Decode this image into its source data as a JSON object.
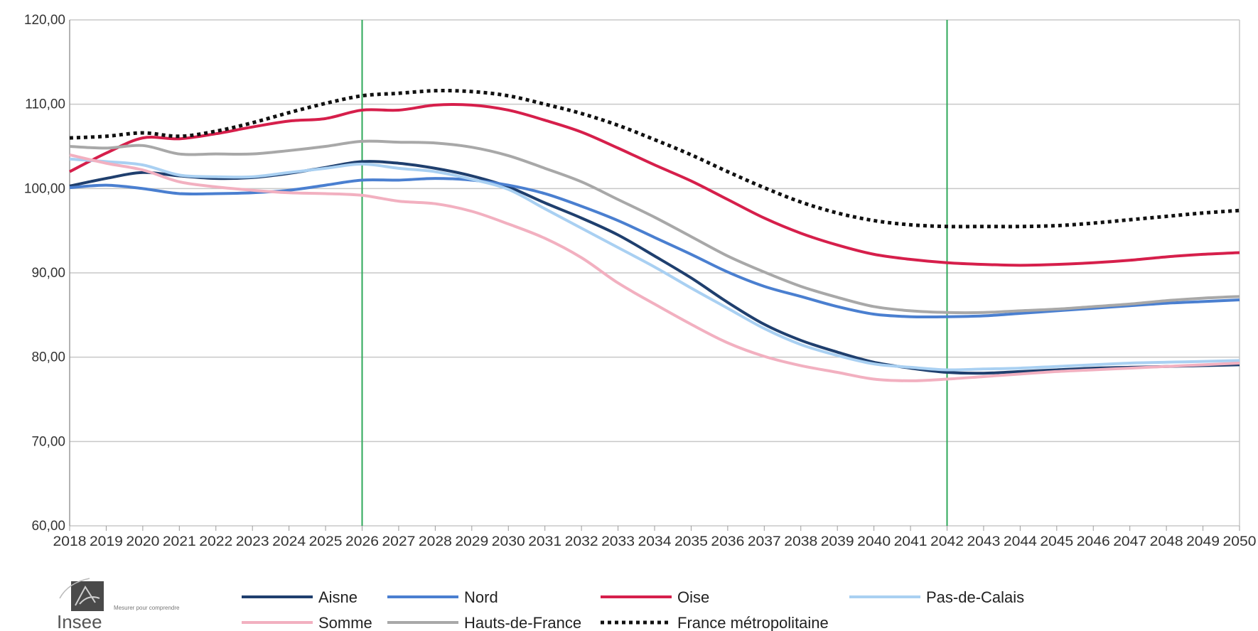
{
  "chart_data": {
    "type": "line",
    "title": "",
    "xlabel": "",
    "ylabel": "",
    "x": [
      2018,
      2019,
      2020,
      2021,
      2022,
      2023,
      2024,
      2025,
      2026,
      2027,
      2028,
      2029,
      2030,
      2031,
      2032,
      2033,
      2034,
      2035,
      2036,
      2037,
      2038,
      2039,
      2040,
      2041,
      2042,
      2043,
      2044,
      2045,
      2046,
      2047,
      2048,
      2049,
      2050
    ],
    "ylim": [
      60,
      120
    ],
    "yticks": [
      60,
      70,
      80,
      90,
      100,
      110,
      120
    ],
    "ytick_labels": [
      "60,00",
      "70,00",
      "80,00",
      "90,00",
      "100,00",
      "110,00",
      "120,00"
    ],
    "grid": true,
    "vertical_markers": [
      2026,
      2042
    ],
    "legend_position": "bottom",
    "series": [
      {
        "name": "Aisne",
        "color": "#1f3f6e",
        "dash": "solid",
        "values": [
          100.3,
          101.2,
          101.9,
          101.5,
          101.2,
          101.3,
          101.8,
          102.5,
          103.2,
          103.0,
          102.4,
          101.5,
          100.2,
          98.3,
          96.5,
          94.5,
          92.0,
          89.4,
          86.5,
          83.9,
          82.0,
          80.6,
          79.4,
          78.7,
          78.2,
          78.1,
          78.3,
          78.5,
          78.7,
          78.8,
          78.9,
          79.0,
          79.1
        ]
      },
      {
        "name": "Nord",
        "color": "#4a7fd0",
        "dash": "solid",
        "values": [
          100.1,
          100.4,
          100.0,
          99.4,
          99.4,
          99.5,
          99.8,
          100.4,
          101.0,
          101.0,
          101.2,
          101.0,
          100.4,
          99.4,
          97.9,
          96.2,
          94.2,
          92.2,
          90.1,
          88.4,
          87.2,
          86.0,
          85.1,
          84.8,
          84.8,
          84.9,
          85.2,
          85.5,
          85.8,
          86.1,
          86.4,
          86.6,
          86.8
        ]
      },
      {
        "name": "Oise",
        "color": "#d61f4b",
        "dash": "solid",
        "values": [
          102.0,
          104.2,
          106.0,
          105.9,
          106.5,
          107.3,
          108.0,
          108.3,
          109.3,
          109.3,
          109.9,
          109.9,
          109.3,
          108.1,
          106.7,
          104.8,
          102.8,
          100.9,
          98.7,
          96.5,
          94.7,
          93.3,
          92.2,
          91.6,
          91.2,
          91.0,
          90.9,
          91.0,
          91.2,
          91.5,
          91.9,
          92.2,
          92.4
        ]
      },
      {
        "name": "Pas-de-Calais",
        "color": "#a9d0f2",
        "dash": "solid",
        "values": [
          103.5,
          103.2,
          102.8,
          101.6,
          101.4,
          101.4,
          101.9,
          102.4,
          102.9,
          102.4,
          102.0,
          101.1,
          99.9,
          97.6,
          95.3,
          93.0,
          90.7,
          88.2,
          85.8,
          83.4,
          81.5,
          80.2,
          79.2,
          78.8,
          78.5,
          78.6,
          78.7,
          78.9,
          79.1,
          79.3,
          79.4,
          79.5,
          79.6
        ]
      },
      {
        "name": "Somme",
        "color": "#f2b0c0",
        "dash": "solid",
        "values": [
          104.0,
          103.0,
          102.2,
          100.8,
          100.2,
          99.8,
          99.5,
          99.4,
          99.2,
          98.5,
          98.2,
          97.3,
          95.8,
          94.1,
          91.8,
          88.8,
          86.3,
          83.9,
          81.7,
          80.1,
          79.0,
          78.2,
          77.4,
          77.2,
          77.4,
          77.7,
          78.0,
          78.3,
          78.5,
          78.7,
          78.9,
          79.1,
          79.3
        ]
      },
      {
        "name": "Hauts-de-France",
        "color": "#a8a8a8",
        "dash": "solid",
        "values": [
          105.0,
          104.8,
          105.1,
          104.1,
          104.1,
          104.1,
          104.5,
          105.0,
          105.6,
          105.5,
          105.4,
          104.9,
          103.9,
          102.4,
          100.8,
          98.7,
          96.6,
          94.3,
          92.0,
          90.1,
          88.4,
          87.1,
          86.0,
          85.5,
          85.3,
          85.3,
          85.5,
          85.7,
          86.0,
          86.3,
          86.7,
          87.0,
          87.2
        ]
      },
      {
        "name": "France métropolitaine",
        "color": "#111111",
        "dash": "dotted",
        "values": [
          106.0,
          106.2,
          106.6,
          106.2,
          106.8,
          107.8,
          109.0,
          110.1,
          111.0,
          111.3,
          111.6,
          111.5,
          111.0,
          110.0,
          108.9,
          107.5,
          105.8,
          104.0,
          102.0,
          100.1,
          98.4,
          97.1,
          96.2,
          95.7,
          95.5,
          95.5,
          95.5,
          95.6,
          95.9,
          96.3,
          96.7,
          97.1,
          97.4
        ]
      }
    ]
  },
  "logo": {
    "name": "Insee",
    "tagline": "Mesurer pour comprendre"
  }
}
